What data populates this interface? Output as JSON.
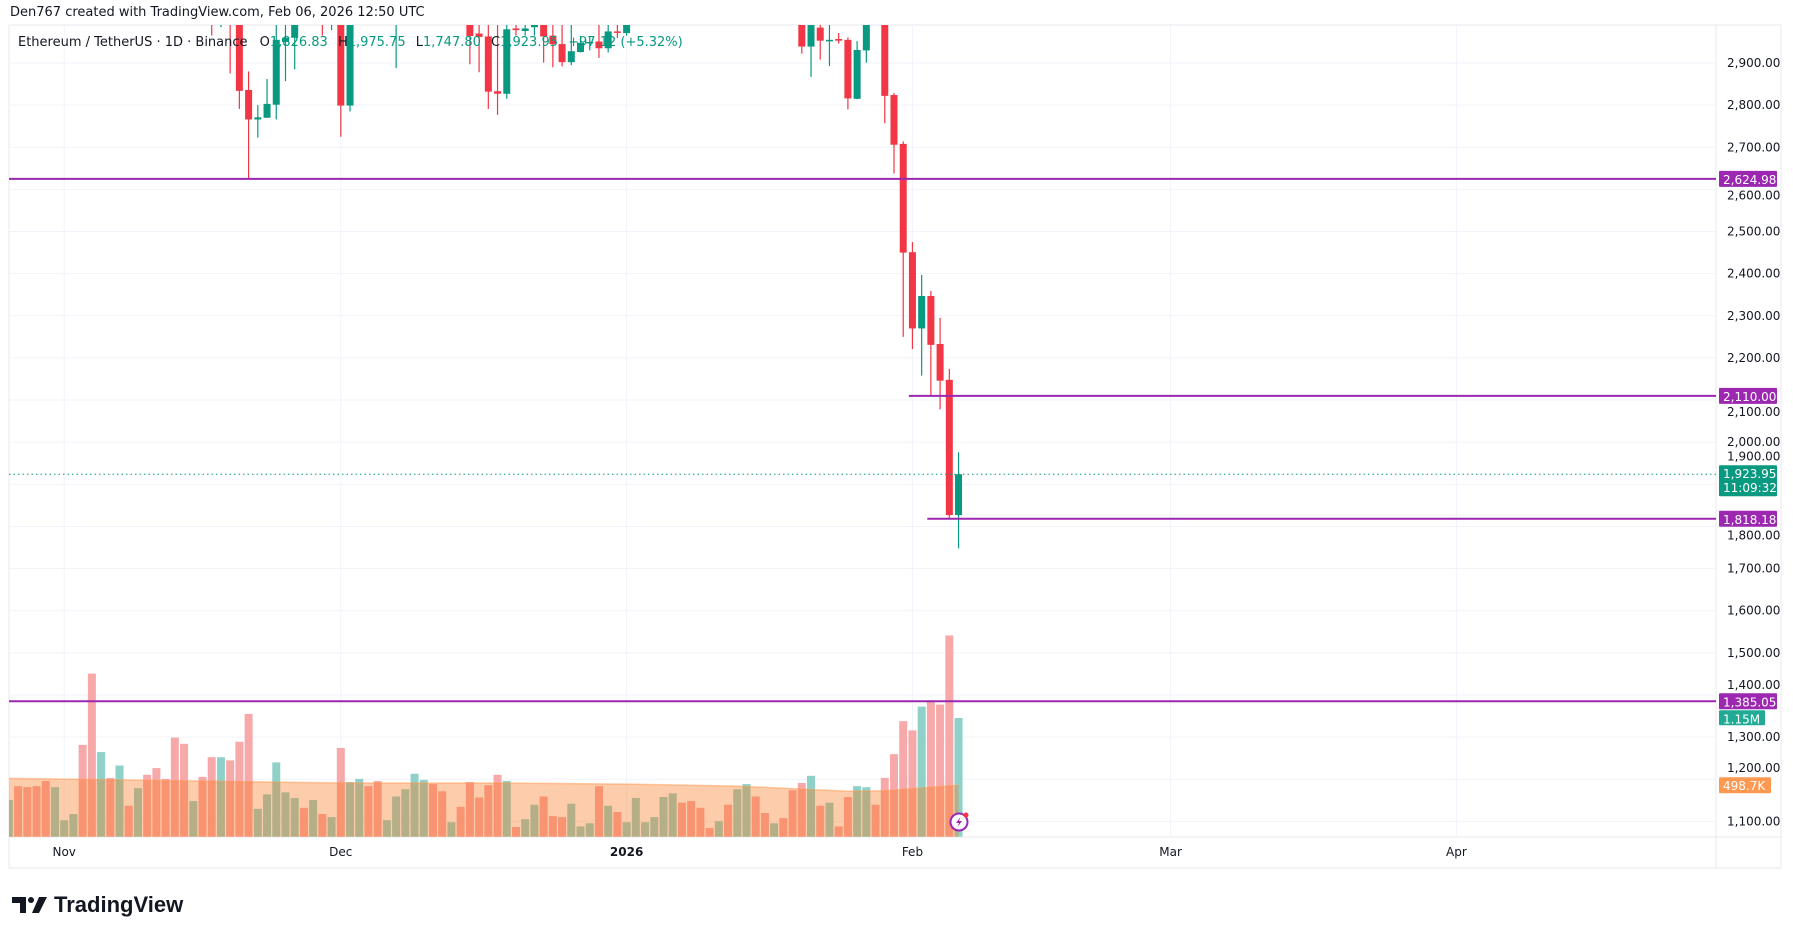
{
  "header": {
    "attribution": "Den767 created with TradingView.com, Feb 06, 2026 12:50 UTC"
  },
  "legend": {
    "symbol": "Ethereum / TetherUS · 1D · Binance",
    "o_label": "O",
    "o_value": "1,826.83",
    "h_label": "H",
    "h_value": "1,975.75",
    "l_label": "L",
    "l_value": "1,747.80",
    "c_label": "C",
    "c_value": "1,923.95",
    "change": "+97.12 (+5.32%)"
  },
  "price_axis": {
    "ticks": [
      "2,900.00",
      "2,800.00",
      "2,700.00",
      "2,600.00",
      "2,500.00",
      "2,400.00",
      "2,300.00",
      "2,200.00",
      "2,100.00",
      "2,000.00",
      "1,900.00",
      "1,800.00",
      "1,700.00",
      "1,600.00",
      "1,500.00",
      "1,400.00",
      "1,300.00",
      "1,200.00",
      "1,100.00"
    ],
    "last_price_label": "1,923.95",
    "countdown": "11:09:32",
    "volume_label": "1.15M",
    "volume_ma_label": "498.7K"
  },
  "time_axis": {
    "labels": [
      {
        "text": "Nov",
        "date": "2025-11-01",
        "bold": false
      },
      {
        "text": "Dec",
        "date": "2025-12-01",
        "bold": false
      },
      {
        "text": "2026",
        "date": "2026-01-01",
        "bold": true
      },
      {
        "text": "Feb",
        "date": "2026-02-01",
        "bold": false
      },
      {
        "text": "Mar",
        "date": "2026-03-01",
        "bold": false
      },
      {
        "text": "Apr",
        "date": "2026-04-01",
        "bold": false
      }
    ]
  },
  "horizontal_lines": [
    {
      "price": 2624.98,
      "label": "2,624.98",
      "from_date": null
    },
    {
      "price": 2110.0,
      "label": "2,110.00",
      "from_date": "2026-02-03"
    },
    {
      "price": 1818.18,
      "label": "1,818.18",
      "from_date": "2026-02-05"
    },
    {
      "price": 1385.05,
      "label": "1,385.05",
      "from_date": null
    }
  ],
  "colors": {
    "up": "#089981",
    "down": "#f23645",
    "line": "#9c27b0",
    "vol_up": "#8fd1c8",
    "vol_down": "#f7a8a8",
    "vol_ma": "#ff9850",
    "grid": "#f0f3fa",
    "text": "#131722"
  },
  "footer": {
    "brand": "TradingView"
  },
  "icons": {
    "alert": "lightning-icon"
  },
  "chart_data": {
    "type": "candlestick",
    "interval": "1D",
    "ylim": [
      1050,
      3000
    ],
    "price_ticks": [
      2900,
      2800,
      2700,
      2600,
      2500,
      2400,
      2300,
      2200,
      2100,
      2000,
      1900,
      1800,
      1700,
      1600,
      1500,
      1400,
      1300,
      1200,
      1100
    ],
    "last_price": 1923.95,
    "candles": [
      [
        "2025-11-17",
        3100,
        3150,
        2965,
        3020
      ],
      [
        "2025-11-18",
        3010,
        3120,
        2985,
        3060
      ],
      [
        "2025-11-19",
        3080,
        3120,
        2875,
        3010
      ],
      [
        "2025-11-20",
        3020,
        3080,
        2791,
        2834
      ],
      [
        "2025-11-21",
        2836,
        2880,
        2625,
        2766
      ],
      [
        "2025-11-22",
        2766,
        2800,
        2723,
        2771
      ],
      [
        "2025-11-23",
        2770,
        2862,
        2770,
        2803
      ],
      [
        "2025-11-24",
        2801,
        3010,
        2766,
        2955
      ],
      [
        "2025-11-25",
        2950,
        3020,
        2857,
        2960
      ],
      [
        "2025-11-26",
        2960,
        3050,
        2885,
        3020
      ],
      [
        "2025-11-29",
        3040,
        3080,
        2965,
        3010
      ],
      [
        "2025-11-30",
        3000,
        3060,
        2978,
        3030
      ],
      [
        "2025-12-01",
        3000,
        3020,
        2725,
        2799
      ],
      [
        "2025-12-02",
        2799,
        3070,
        2785,
        3050
      ],
      [
        "2025-12-05",
        3080,
        3120,
        2990,
        3020
      ],
      [
        "2025-12-07",
        3020,
        3080,
        2888,
        3050
      ],
      [
        "2025-12-15",
        3005,
        3050,
        2897,
        2964
      ],
      [
        "2025-12-16",
        2970,
        3010,
        2878,
        2962
      ],
      [
        "2025-12-17",
        2963,
        3000,
        2791,
        2832
      ],
      [
        "2025-12-18",
        2833,
        2990,
        2777,
        2827
      ],
      [
        "2025-12-19",
        2827,
        3000,
        2815,
        2980
      ],
      [
        "2025-12-20",
        2982,
        2998,
        2965,
        2978
      ],
      [
        "2025-12-21",
        2976,
        2999,
        2965,
        2982
      ],
      [
        "2025-12-22",
        2985,
        3030,
        2965,
        3010
      ],
      [
        "2025-12-23",
        3005,
        3020,
        2901,
        2963
      ],
      [
        "2025-12-24",
        2965,
        2998,
        2890,
        2945
      ],
      [
        "2025-12-25",
        2945,
        2990,
        2892,
        2902
      ],
      [
        "2025-12-26",
        2902,
        2995,
        2895,
        2928
      ],
      [
        "2025-12-27",
        2926,
        2964,
        2925,
        2948
      ],
      [
        "2025-12-28",
        2948,
        2964,
        2930,
        2950
      ],
      [
        "2025-12-29",
        2951,
        2995,
        2912,
        2935
      ],
      [
        "2025-12-30",
        2935,
        2998,
        2925,
        2975
      ],
      [
        "2025-12-31",
        2975,
        2995,
        2959,
        2972
      ],
      [
        "2026-01-01",
        2971,
        3010,
        2965,
        3000
      ],
      [
        "2026-01-20",
        3010,
        3060,
        2922,
        2939
      ],
      [
        "2026-01-21",
        2939,
        3030,
        2867,
        2990
      ],
      [
        "2026-01-22",
        2984,
        3000,
        2908,
        2953
      ],
      [
        "2026-01-23",
        2953,
        3010,
        2893,
        2955
      ],
      [
        "2026-01-24",
        2957,
        2971,
        2946,
        2953
      ],
      [
        "2026-01-25",
        2955,
        2961,
        2790,
        2816
      ],
      [
        "2026-01-26",
        2815,
        2952,
        2814,
        2931
      ],
      [
        "2026-01-27",
        2930,
        3040,
        2901,
        3010
      ],
      [
        "2026-01-29",
        3005,
        3020,
        2757,
        2822
      ],
      [
        "2026-01-30",
        2824,
        2829,
        2638,
        2706
      ],
      [
        "2026-01-31",
        2708,
        2714,
        2250,
        2450
      ],
      [
        "2026-02-01",
        2451,
        2475,
        2221,
        2270
      ],
      [
        "2026-02-02",
        2270,
        2397,
        2158,
        2347
      ],
      [
        "2026-02-03",
        2347,
        2359,
        2111,
        2231
      ],
      [
        "2026-02-04",
        2233,
        2295,
        2078,
        2146
      ],
      [
        "2026-02-05",
        2148,
        2174,
        1818.18,
        1826.83
      ],
      [
        "2026-02-06",
        1826.83,
        1975.75,
        1747.8,
        1923.95
      ]
    ],
    "volume_start_date": "2025-10-26",
    "volume_millions": [
      0.355,
      0.49,
      0.48,
      0.49,
      0.54,
      0.48,
      0.16,
      0.22,
      0.89,
      1.58,
      0.82,
      0.57,
      0.69,
      0.3,
      0.47,
      0.6,
      0.665,
      0.56,
      0.96,
      0.9,
      0.345,
      0.58,
      0.77,
      0.77,
      0.74,
      0.92,
      1.19,
      0.27,
      0.41,
      0.72,
      0.43,
      0.375,
      0.28,
      0.355,
      0.22,
      0.19,
      0.86,
      0.53,
      0.56,
      0.49,
      0.54,
      0.16,
      0.39,
      0.46,
      0.61,
      0.55,
      0.51,
      0.44,
      0.14,
      0.29,
      0.53,
      0.38,
      0.5,
      0.6,
      0.54,
      0.094,
      0.17,
      0.31,
      0.39,
      0.2,
      0.19,
      0.32,
      0.1,
      0.13,
      0.49,
      0.3,
      0.24,
      0.14,
      0.375,
      0.14,
      0.19,
      0.385,
      0.42,
      0.33,
      0.345,
      0.28,
      0.084,
      0.15,
      0.31,
      0.46,
      0.51,
      0.39,
      0.23,
      0.13,
      0.18,
      0.45,
      0.52,
      0.59,
      0.3,
      0.33,
      0.1,
      0.385,
      0.49,
      0.48,
      0.31,
      0.57,
      0.8,
      1.12,
      1.03,
      1.26,
      1.32,
      1.28,
      1.95,
      1.15
    ],
    "volume_direction": "GRRRRGGGRRGRGRGRRRRRGRRGRRRGGGGGRGRGRGGRRGGGGGRRGRRRRRGRGGRRRGGGRGRGGGGGGRRRRGRGGRRGRRRGRGRRGGRRRRRGRRRG",
    "volume_ma_millions": [
      [
        "2025-10-26",
        0.565
      ],
      [
        "2025-12-01",
        0.52
      ],
      [
        "2025-12-18",
        0.52
      ],
      [
        "2026-01-01",
        0.51
      ],
      [
        "2026-01-13",
        0.49
      ],
      [
        "2026-01-25",
        0.44
      ],
      [
        "2026-01-29",
        0.445
      ],
      [
        "2026-02-06",
        0.499
      ]
    ]
  }
}
